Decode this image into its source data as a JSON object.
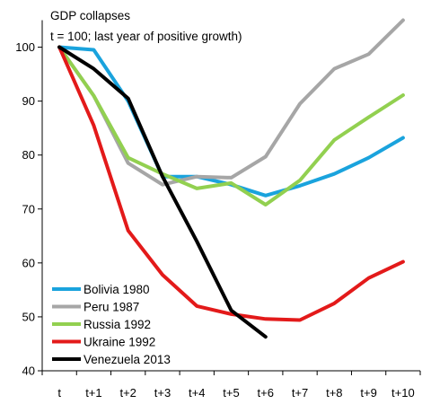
{
  "chart_data": {
    "type": "line",
    "title": "GDP collapses",
    "subtitle": "t = 100; last year of positive growth)",
    "categories": [
      "t",
      "t+1",
      "t+2",
      "t+3",
      "t+4",
      "t+5",
      "t+6",
      "t+7",
      "t+8",
      "t+9",
      "t+10"
    ],
    "ylim": [
      40,
      105
    ],
    "yticks": [
      40,
      50,
      60,
      70,
      80,
      90,
      100
    ],
    "grid": false,
    "legend_position": "bottom-left",
    "series": [
      {
        "name": "Bolivia 1980",
        "color": "#1aa3dd",
        "values": [
          100,
          99.5,
          90,
          76,
          76,
          74.5,
          72.5,
          74.3,
          76.5,
          79.5,
          83.2
        ]
      },
      {
        "name": "Peru 1987",
        "color": "#a6a6a6",
        "values": [
          100,
          91,
          78.5,
          74.5,
          76,
          75.8,
          79.7,
          89.5,
          96,
          98.7,
          105.3
        ]
      },
      {
        "name": "Russia 1992",
        "color": "#92d050",
        "values": [
          100,
          91,
          79.5,
          76.5,
          73.8,
          74.8,
          70.8,
          75.3,
          82.8,
          87,
          91.1
        ]
      },
      {
        "name": "Ukraine 1992",
        "color": "#e31a1a",
        "values": [
          100,
          85.5,
          66,
          57.8,
          52,
          50.5,
          49.6,
          49.4,
          52.5,
          57.2,
          60.2
        ]
      },
      {
        "name": "Venezuela 2013",
        "color": "#000000",
        "values": [
          100,
          96,
          90.5,
          76,
          64,
          51.2,
          46.3,
          null,
          null,
          null,
          null
        ]
      }
    ]
  }
}
